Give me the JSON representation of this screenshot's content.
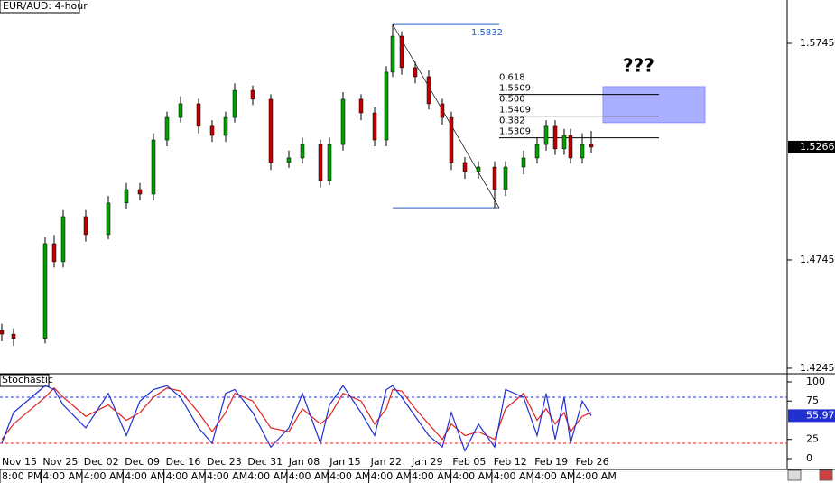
{
  "chart_data": [
    {
      "type": "candlestick",
      "title": "EUR/AUD: 4-hour",
      "ohlc": [
        [
          1.442,
          1.445,
          1.437,
          1.4403
        ],
        [
          1.4403,
          1.443,
          1.435,
          1.4383
        ],
        [
          1.4383,
          1.485,
          1.436,
          1.482
        ],
        [
          1.482,
          1.486,
          1.471,
          1.4737
        ],
        [
          1.4737,
          1.4975,
          1.471,
          1.4945
        ],
        [
          1.4945,
          1.4975,
          1.483,
          1.4862
        ],
        [
          1.4862,
          1.504,
          1.484,
          1.5008
        ],
        [
          1.5008,
          1.51,
          1.498,
          1.507
        ],
        [
          1.507,
          1.51,
          1.502,
          1.5049
        ],
        [
          1.5049,
          1.533,
          1.502,
          1.5299
        ],
        [
          1.5299,
          1.543,
          1.527,
          1.5403
        ],
        [
          1.5403,
          1.55,
          1.538,
          1.5466
        ],
        [
          1.5466,
          1.549,
          1.533,
          1.5362
        ],
        [
          1.5362,
          1.539,
          1.529,
          1.532
        ],
        [
          1.532,
          1.543,
          1.529,
          1.5403
        ],
        [
          1.5403,
          1.556,
          1.538,
          1.5528
        ],
        [
          1.5528,
          1.555,
          1.546,
          1.5487
        ],
        [
          1.5487,
          1.551,
          1.516,
          1.5195
        ],
        [
          1.5195,
          1.525,
          1.517,
          1.5216
        ],
        [
          1.5216,
          1.531,
          1.519,
          1.5278
        ],
        [
          1.5278,
          1.53,
          1.508,
          1.5112
        ],
        [
          1.5112,
          1.531,
          1.509,
          1.5278
        ],
        [
          1.5278,
          1.552,
          1.525,
          1.5487
        ],
        [
          1.5487,
          1.551,
          1.539,
          1.5424
        ],
        [
          1.5424,
          1.545,
          1.527,
          1.5299
        ],
        [
          1.5299,
          1.564,
          1.527,
          1.5612
        ],
        [
          1.5612,
          1.5832,
          1.559,
          1.5778
        ],
        [
          1.5778,
          1.58,
          1.56,
          1.5633
        ],
        [
          1.5633,
          1.566,
          1.556,
          1.5591
        ],
        [
          1.5591,
          1.562,
          1.544,
          1.5466
        ],
        [
          1.5466,
          1.549,
          1.537,
          1.5403
        ],
        [
          1.5403,
          1.543,
          1.516,
          1.5195
        ],
        [
          1.5195,
          1.522,
          1.512,
          1.5153
        ],
        [
          1.5153,
          1.52,
          1.512,
          1.5174
        ],
        [
          1.5174,
          1.52,
          1.4986,
          1.507
        ],
        [
          1.507,
          1.52,
          1.504,
          1.5174
        ],
        [
          1.5174,
          1.525,
          1.514,
          1.5216
        ],
        [
          1.5216,
          1.531,
          1.519,
          1.5278
        ],
        [
          1.5278,
          1.539,
          1.525,
          1.5362
        ],
        [
          1.5362,
          1.539,
          1.523,
          1.5258
        ],
        [
          1.5258,
          1.535,
          1.523,
          1.532
        ],
        [
          1.532,
          1.535,
          1.519,
          1.5216
        ],
        [
          1.5216,
          1.533,
          1.519,
          1.5278
        ],
        [
          1.5278,
          1.534,
          1.524,
          1.5266
        ]
      ],
      "up_color": "#00a000",
      "down_color": "#c00000",
      "ylim": [
        1.4224,
        1.5945
      ],
      "yticks": [
        1.4245,
        1.4745,
        1.5745
      ],
      "fib": {
        "high": 1.5832,
        "low": 1.4986,
        "ratio_labels": [
          "0.618",
          "0.500",
          "0.382"
        ],
        "prices": [
          1.5509,
          1.5409,
          1.5309
        ],
        "color": "#2060c0"
      },
      "target_zone": [
        1.5379,
        1.5545
      ],
      "zone_color": "#aab0ff",
      "annotation": "???"
    },
    {
      "type": "line",
      "title": "Stochastic",
      "series": [
        {
          "color": "#2030d0",
          "values": [
            20,
            60,
            95,
            90,
            70,
            40,
            85,
            30,
            75,
            90,
            95,
            80,
            40,
            20,
            85,
            90,
            60,
            15,
            40,
            85,
            20,
            70,
            95,
            60,
            30,
            90,
            95,
            80,
            55,
            30,
            15,
            60,
            10,
            45,
            15,
            90,
            80,
            30,
            85,
            25,
            80,
            20,
            75,
            55.97
          ]
        },
        {
          "color": "#e02020",
          "values": [
            25,
            45,
            80,
            92,
            80,
            55,
            70,
            50,
            60,
            80,
            92,
            88,
            60,
            35,
            60,
            85,
            75,
            40,
            35,
            65,
            45,
            55,
            85,
            75,
            45,
            65,
            90,
            88,
            65,
            45,
            25,
            45,
            30,
            35,
            25,
            65,
            85,
            50,
            65,
            45,
            60,
            35,
            55,
            60
          ]
        }
      ],
      "ylim": [
        -11.8,
        109.4
      ],
      "yticks": [
        0,
        25,
        75,
        100
      ],
      "levels": [
        80,
        20
      ],
      "level_colors": [
        "#2030d0",
        "#e02020"
      ],
      "date_labels": [
        "Nov 15",
        "Nov 25",
        "Dec 02",
        "Dec 09",
        "Dec 16",
        "Dec 23",
        "Dec 31",
        "Jan 08",
        "Jan 15",
        "Jan 22",
        "Jan 29",
        "Feb 05",
        "Feb 12",
        "Feb 19",
        "Feb 26"
      ],
      "time_labels": [
        "8:00 PM",
        "4:00 AM",
        "4:00 AM",
        "4:00 AM",
        "4:00 AM",
        "4:00 AM",
        "4:00 AM",
        "4:00 AM",
        "4:00 AM",
        "4:00 AM",
        "4:00 AM",
        "4:00 AM",
        "4:00 AM",
        "4:00 AM",
        "4:00 AM"
      ]
    }
  ]
}
